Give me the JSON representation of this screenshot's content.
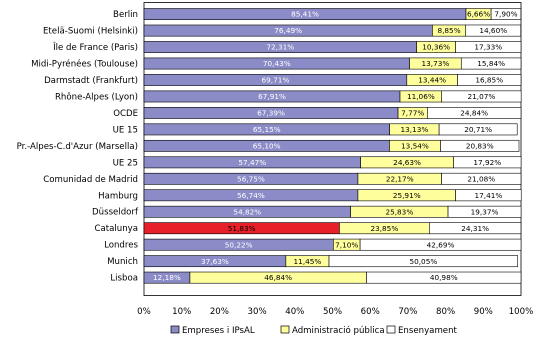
{
  "chart_data": {
    "type": "bar",
    "orientation": "horizontal",
    "stacked": true,
    "percent": true,
    "title": "",
    "xlabel": "",
    "ylabel": "",
    "xlim": [
      0,
      100
    ],
    "x_ticks": [
      "0%",
      "10%",
      "20%",
      "30%",
      "40%",
      "50%",
      "60%",
      "70%",
      "80%",
      "90%",
      "100%"
    ],
    "grid": false,
    "legend_position": "bottom",
    "categories": [
      "Berlin",
      "Etelä-Suomi (Helsinki)",
      "Île de France (Paris)",
      "Midi-Pyrénées (Toulouse)",
      "Darmstadt (Frankfurt)",
      "Rhône-Alpes (Lyon)",
      "OCDE",
      "UE 15",
      "Pr.-Alpes-C.d'Azur (Marsella)",
      "UE 25",
      "Comunidad de Madrid",
      "Hamburg",
      "Düsseldorf",
      "Catalunya",
      "Londres",
      "Munich",
      "Lisboa"
    ],
    "highlight": {
      "category": "Catalunya",
      "series": "Empreses i IPsAL",
      "color": "#e8202a"
    },
    "series": [
      {
        "name": "Empreses i IPsAL",
        "color": "#8b8bc7",
        "label_color": "#ffffff",
        "values": [
          85.41,
          76.49,
          72.31,
          70.43,
          69.71,
          67.91,
          67.39,
          65.15,
          65.1,
          57.47,
          56.75,
          56.74,
          54.82,
          51.83,
          50.22,
          37.63,
          12.18
        ],
        "labels": [
          "85,41%",
          "76,49%",
          "72,31%",
          "70,43%",
          "69,71%",
          "67,91%",
          "67,39%",
          "65,15%",
          "65,10%",
          "57,47%",
          "56,75%",
          "56,74%",
          "54,82%",
          "51,83%",
          "50,22%",
          "37,63%",
          "12,18%"
        ]
      },
      {
        "name": "Administració pública",
        "color": "#fefe9c",
        "label_color": "#000000",
        "values": [
          6.66,
          8.85,
          10.36,
          13.73,
          13.44,
          11.06,
          7.77,
          13.13,
          13.54,
          24.63,
          22.17,
          25.91,
          25.83,
          23.85,
          7.1,
          11.45,
          46.84
        ],
        "labels": [
          "6,66%",
          "8,85%",
          "10,36%",
          "13,73%",
          "13,44%",
          "11,06%",
          "7,77%",
          "13,13%",
          "13,54%",
          "24,63%",
          "22,17%",
          "25,91%",
          "25,83%",
          "23,85%",
          "7,10%",
          "11,45%",
          "46,84%"
        ]
      },
      {
        "name": "Ensenyament",
        "color": "#ffffff",
        "label_color": "#000000",
        "values": [
          7.9,
          14.6,
          17.33,
          15.84,
          16.85,
          21.07,
          24.84,
          20.71,
          20.83,
          17.92,
          21.08,
          17.41,
          19.37,
          24.31,
          42.69,
          50.05,
          40.98
        ],
        "labels": [
          "7,90%",
          "14,60%",
          "17,33%",
          "15,84%",
          "16,85%",
          "21,07%",
          "24,84%",
          "20,71%",
          "20,83%",
          "17,92%",
          "21,08%",
          "17,41%",
          "19,37%",
          "24,31%",
          "42,69%",
          "50,05%",
          "40,98%"
        ]
      }
    ]
  }
}
